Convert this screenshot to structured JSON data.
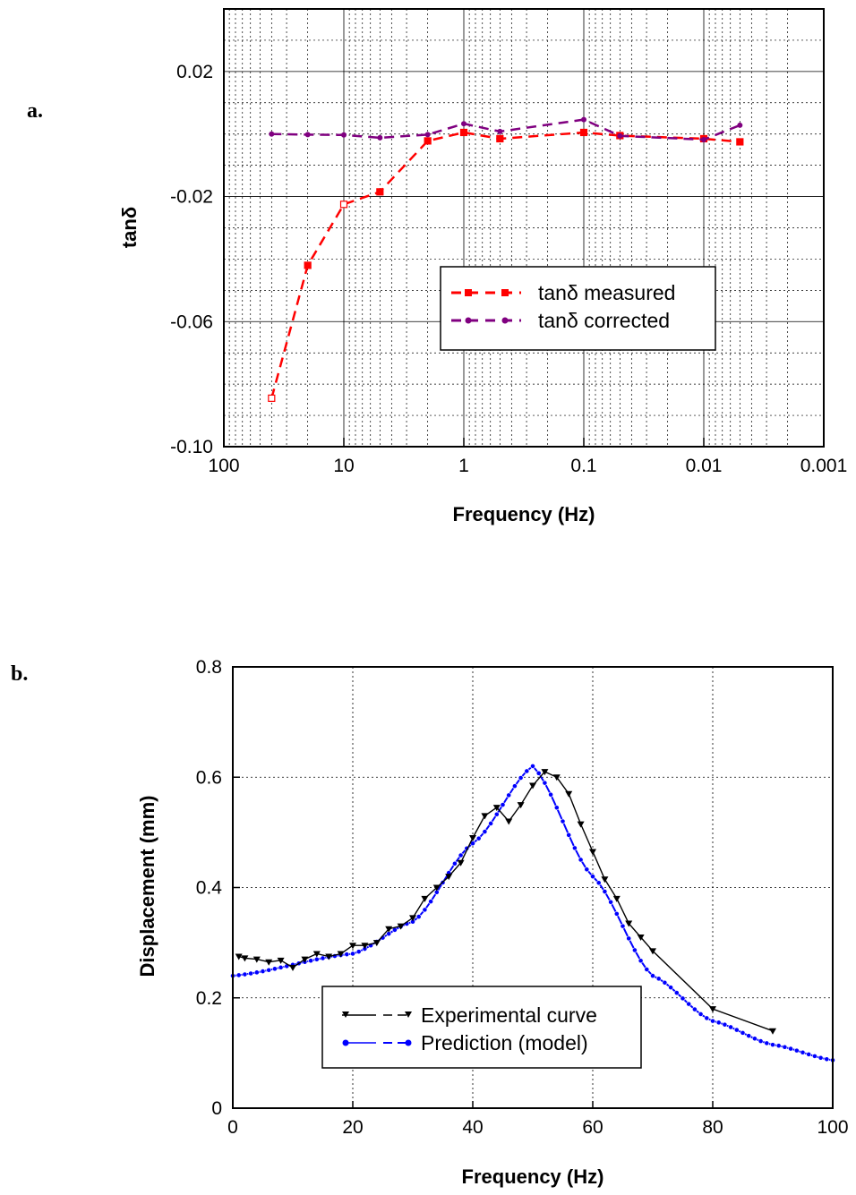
{
  "chart_data": [
    {
      "panel_label": "a.",
      "type": "line",
      "xscale": "log",
      "x_reversed": true,
      "xlim": [
        100,
        0.001
      ],
      "ylim": [
        -0.1,
        0.04
      ],
      "xlabel": "Frequency (Hz)",
      "ylabel": "tanδ",
      "xticks": [
        100,
        10,
        1,
        0.1,
        0.01,
        0.001
      ],
      "xtick_labels": [
        "100",
        "10",
        "1",
        "0.1",
        "0.01",
        "0.001"
      ],
      "yticks": [
        -0.1,
        -0.06,
        -0.02,
        0.02
      ],
      "ytick_labels": [
        "-0.10",
        "-0.06",
        "-0.02",
        "0.02"
      ],
      "grid": true,
      "legend_position": "center-right",
      "series": [
        {
          "name": "tanδ measured",
          "color": "#ff0000",
          "marker": "square",
          "x": [
            40,
            20,
            10,
            5,
            2,
            1,
            0.5,
            0.1,
            0.05,
            0.01,
            0.005
          ],
          "y": [
            -0.0845,
            -0.042,
            -0.0225,
            -0.0185,
            -0.0022,
            0.0005,
            -0.0015,
            0.0005,
            -0.0005,
            -0.0015,
            -0.0025
          ]
        },
        {
          "name": "tanδ corrected",
          "color": "#800080",
          "marker": "circle",
          "x": [
            40,
            20,
            10,
            5,
            2,
            1,
            0.5,
            0.1,
            0.05,
            0.01,
            0.005
          ],
          "y": [
            0.0,
            -0.0002,
            -0.0003,
            -0.0012,
            -0.0002,
            0.0033,
            0.0008,
            0.0046,
            -0.0006,
            -0.0018,
            0.0028
          ]
        }
      ]
    },
    {
      "panel_label": "b.",
      "type": "line",
      "xlim": [
        0,
        100
      ],
      "ylim": [
        0,
        0.8
      ],
      "xlabel": "Frequency (Hz)",
      "ylabel": "Displacement (mm)",
      "xticks": [
        0,
        20,
        40,
        60,
        80,
        100
      ],
      "xtick_labels": [
        "0",
        "20",
        "40",
        "60",
        "80",
        "100"
      ],
      "yticks": [
        0,
        0.2,
        0.4,
        0.6,
        0.8
      ],
      "ytick_labels": [
        "0",
        "0.2",
        "0.4",
        "0.6",
        "0.8"
      ],
      "grid": true,
      "legend_position": "bottom-center",
      "series": [
        {
          "name": "Experimental curve",
          "color": "#000000",
          "marker": "triangle-down",
          "x": [
            1,
            2,
            4,
            6,
            8,
            10,
            12,
            14,
            16,
            18,
            20,
            22,
            24,
            26,
            28,
            30,
            32,
            34,
            36,
            38,
            40,
            42,
            44,
            46,
            48,
            50,
            52,
            54,
            56,
            58,
            60,
            62,
            64,
            66,
            68,
            70,
            80,
            90
          ],
          "y": [
            0.275,
            0.272,
            0.27,
            0.265,
            0.268,
            0.255,
            0.27,
            0.28,
            0.275,
            0.28,
            0.295,
            0.295,
            0.3,
            0.325,
            0.33,
            0.345,
            0.38,
            0.4,
            0.42,
            0.445,
            0.49,
            0.53,
            0.545,
            0.52,
            0.55,
            0.585,
            0.61,
            0.6,
            0.57,
            0.515,
            0.465,
            0.415,
            0.38,
            0.335,
            0.31,
            0.285,
            0.18,
            0.14
          ]
        },
        {
          "name": "Prediction (model)",
          "color": "#0000ff",
          "marker": "circle",
          "model": {
            "baseline": 0.24,
            "peak_x": 50,
            "peak_y": 0.62,
            "high_x": 100,
            "high_y": 0.087
          },
          "x_step": 1,
          "x_range": [
            0,
            100
          ],
          "y_sample": [
            [
              0,
              0.24
            ],
            [
              20,
              0.28
            ],
            [
              30,
              0.338
            ],
            [
              40,
              0.48
            ],
            [
              50,
              0.62
            ],
            [
              60,
              0.42
            ],
            [
              70,
              0.24
            ],
            [
              80,
              0.158
            ],
            [
              90,
              0.115
            ],
            [
              100,
              0.087
            ]
          ]
        }
      ]
    }
  ]
}
